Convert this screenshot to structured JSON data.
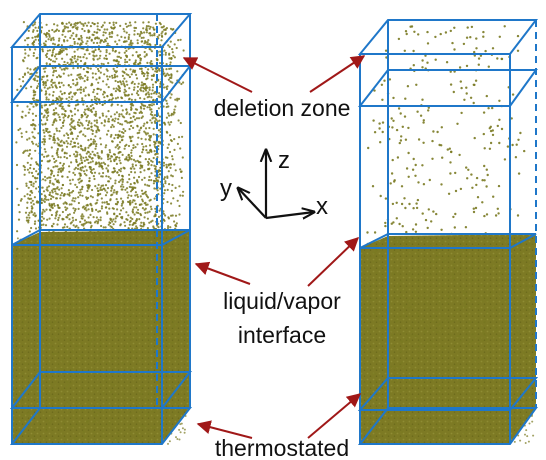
{
  "colors": {
    "box_edge": "#1f77c9",
    "particle": "#7a7a22",
    "liquid": "#7d7a24",
    "arrow": "#a01818",
    "axis": "#111111"
  },
  "labels": {
    "deletion_zone": "deletion zone",
    "interface_line1": "liquid/vapor",
    "interface_line2": "interface",
    "thermostated": "thermostated"
  },
  "axes": {
    "z": "z",
    "y": "y",
    "x": "x"
  },
  "simulation_boxes": [
    {
      "id": "left",
      "vapor_density": "high"
    },
    {
      "id": "right",
      "vapor_density": "low"
    }
  ]
}
